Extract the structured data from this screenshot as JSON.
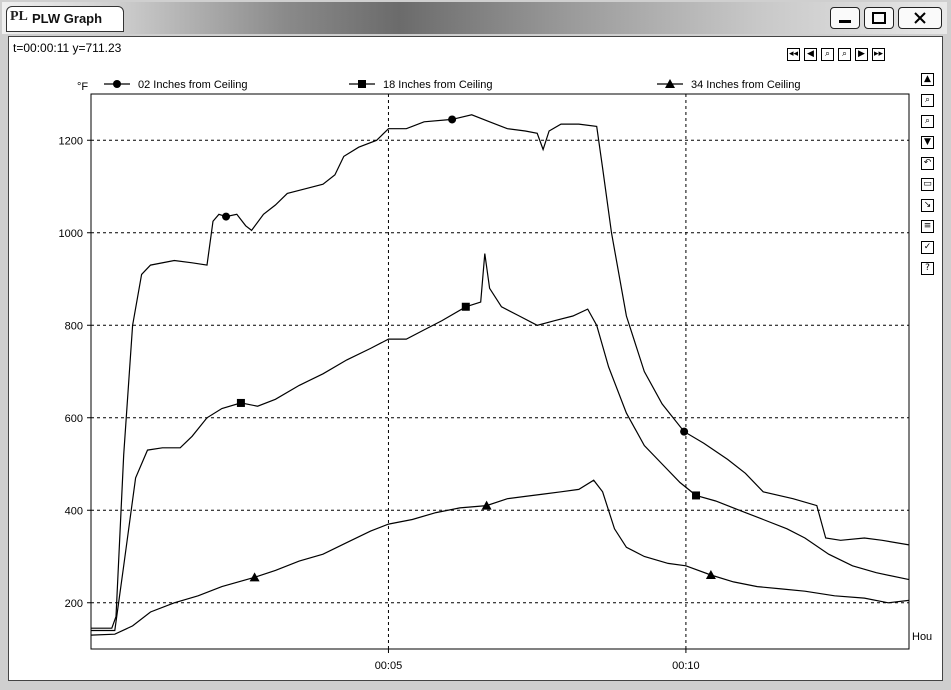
{
  "window": {
    "title": "PLW Graph",
    "icon_text": "PL"
  },
  "cursor_readout": "t=00:00:11 y=711.23",
  "toolbar_top": [
    "first-icon",
    "prev-icon",
    "zoom-in-icon",
    "zoom-out-icon",
    "next-icon",
    "last-icon"
  ],
  "toolbar_side": [
    "scroll-up-icon",
    "zoom-in-icon",
    "zoom-out-icon",
    "scroll-down-icon",
    "undo-icon",
    "window-icon",
    "export-icon",
    "list-icon",
    "check-icon",
    "help-icon"
  ],
  "chart_data": {
    "type": "line",
    "ylabel": "°F",
    "xlabel": "Hou",
    "x_tick_labels": [
      "00:05",
      "00:10"
    ],
    "x_ticks": [
      5,
      10
    ],
    "xlim": [
      0,
      13.75
    ],
    "y_ticks": [
      200,
      400,
      600,
      800,
      1000,
      1200
    ],
    "ylim": [
      100,
      1300
    ],
    "grid": true,
    "legend_position": "top",
    "series": [
      {
        "name": "02 Inches from Ceiling",
        "marker": "circle",
        "marker_points": [
          [
            2.27,
            1035
          ],
          [
            6.07,
            1245
          ],
          [
            9.97,
            570
          ]
        ],
        "points": [
          [
            0,
            145
          ],
          [
            0.35,
            145
          ],
          [
            0.42,
            170
          ],
          [
            0.55,
            520
          ],
          [
            0.7,
            800
          ],
          [
            0.85,
            910
          ],
          [
            1.0,
            930
          ],
          [
            1.4,
            940
          ],
          [
            1.7,
            935
          ],
          [
            1.95,
            930
          ],
          [
            2.05,
            1025
          ],
          [
            2.15,
            1040
          ],
          [
            2.27,
            1035
          ],
          [
            2.45,
            1040
          ],
          [
            2.6,
            1015
          ],
          [
            2.7,
            1005
          ],
          [
            2.9,
            1040
          ],
          [
            3.1,
            1060
          ],
          [
            3.3,
            1085
          ],
          [
            3.6,
            1095
          ],
          [
            3.9,
            1105
          ],
          [
            4.1,
            1125
          ],
          [
            4.25,
            1165
          ],
          [
            4.5,
            1185
          ],
          [
            4.8,
            1200
          ],
          [
            5.0,
            1225
          ],
          [
            5.3,
            1225
          ],
          [
            5.6,
            1240
          ],
          [
            6.07,
            1245
          ],
          [
            6.4,
            1255
          ],
          [
            6.7,
            1240
          ],
          [
            7.0,
            1225
          ],
          [
            7.3,
            1220
          ],
          [
            7.5,
            1215
          ],
          [
            7.6,
            1180
          ],
          [
            7.7,
            1220
          ],
          [
            7.9,
            1235
          ],
          [
            8.2,
            1235
          ],
          [
            8.5,
            1230
          ],
          [
            8.6,
            1140
          ],
          [
            8.75,
            1000
          ],
          [
            9.0,
            820
          ],
          [
            9.3,
            700
          ],
          [
            9.6,
            630
          ],
          [
            9.97,
            570
          ],
          [
            10.3,
            545
          ],
          [
            10.7,
            510
          ],
          [
            11.0,
            480
          ],
          [
            11.3,
            440
          ],
          [
            11.8,
            425
          ],
          [
            12.2,
            410
          ],
          [
            12.35,
            340
          ],
          [
            12.6,
            335
          ],
          [
            13.0,
            340
          ],
          [
            13.3,
            335
          ],
          [
            13.75,
            325
          ]
        ]
      },
      {
        "name": "18 Inches from Ceiling",
        "marker": "square",
        "marker_points": [
          [
            2.52,
            632
          ],
          [
            6.3,
            840
          ],
          [
            10.17,
            432
          ]
        ],
        "points": [
          [
            0,
            140
          ],
          [
            0.4,
            140
          ],
          [
            0.55,
            280
          ],
          [
            0.75,
            470
          ],
          [
            0.95,
            530
          ],
          [
            1.2,
            535
          ],
          [
            1.5,
            535
          ],
          [
            1.7,
            560
          ],
          [
            1.95,
            600
          ],
          [
            2.2,
            620
          ],
          [
            2.52,
            632
          ],
          [
            2.8,
            625
          ],
          [
            3.1,
            640
          ],
          [
            3.5,
            670
          ],
          [
            3.9,
            695
          ],
          [
            4.3,
            725
          ],
          [
            4.7,
            750
          ],
          [
            5.0,
            770
          ],
          [
            5.3,
            770
          ],
          [
            5.6,
            790
          ],
          [
            5.9,
            810
          ],
          [
            6.3,
            840
          ],
          [
            6.55,
            850
          ],
          [
            6.62,
            955
          ],
          [
            6.7,
            880
          ],
          [
            6.9,
            840
          ],
          [
            7.2,
            820
          ],
          [
            7.5,
            800
          ],
          [
            7.8,
            810
          ],
          [
            8.1,
            820
          ],
          [
            8.35,
            835
          ],
          [
            8.5,
            800
          ],
          [
            8.7,
            710
          ],
          [
            9.0,
            610
          ],
          [
            9.3,
            540
          ],
          [
            9.6,
            500
          ],
          [
            9.9,
            460
          ],
          [
            10.17,
            432
          ],
          [
            10.5,
            420
          ],
          [
            10.9,
            400
          ],
          [
            11.3,
            380
          ],
          [
            11.7,
            360
          ],
          [
            12.0,
            340
          ],
          [
            12.4,
            305
          ],
          [
            12.8,
            280
          ],
          [
            13.2,
            265
          ],
          [
            13.75,
            250
          ]
        ]
      },
      {
        "name": "34 Inches from Ceiling",
        "marker": "triangle",
        "marker_points": [
          [
            2.75,
            255
          ],
          [
            6.65,
            410
          ],
          [
            10.42,
            260
          ]
        ],
        "points": [
          [
            0,
            130
          ],
          [
            0.4,
            132
          ],
          [
            0.7,
            150
          ],
          [
            1.0,
            180
          ],
          [
            1.4,
            200
          ],
          [
            1.8,
            215
          ],
          [
            2.2,
            235
          ],
          [
            2.75,
            255
          ],
          [
            3.1,
            270
          ],
          [
            3.5,
            290
          ],
          [
            3.9,
            305
          ],
          [
            4.3,
            330
          ],
          [
            4.7,
            355
          ],
          [
            5.0,
            370
          ],
          [
            5.4,
            380
          ],
          [
            5.8,
            395
          ],
          [
            6.2,
            405
          ],
          [
            6.65,
            410
          ],
          [
            7.0,
            425
          ],
          [
            7.3,
            430
          ],
          [
            7.6,
            435
          ],
          [
            7.9,
            440
          ],
          [
            8.2,
            445
          ],
          [
            8.45,
            465
          ],
          [
            8.6,
            440
          ],
          [
            8.8,
            360
          ],
          [
            9.0,
            320
          ],
          [
            9.3,
            300
          ],
          [
            9.7,
            285
          ],
          [
            10.0,
            280
          ],
          [
            10.42,
            260
          ],
          [
            10.8,
            245
          ],
          [
            11.2,
            235
          ],
          [
            11.6,
            230
          ],
          [
            12.0,
            225
          ],
          [
            12.5,
            215
          ],
          [
            13.0,
            210
          ],
          [
            13.4,
            200
          ],
          [
            13.75,
            205
          ]
        ]
      }
    ]
  }
}
